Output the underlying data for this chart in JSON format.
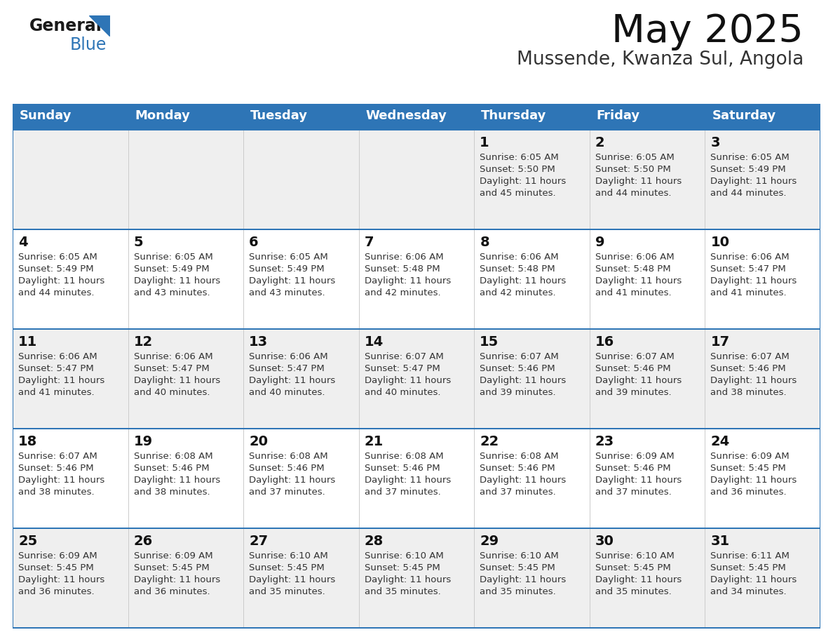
{
  "title": "May 2025",
  "subtitle": "Mussende, Kwanza Sul, Angola",
  "header_bg_color": "#2E75B6",
  "header_text_color": "#FFFFFF",
  "cell_bg_odd": "#EFEFEF",
  "cell_bg_even": "#FFFFFF",
  "text_color": "#222222",
  "border_color": "#2E75B6",
  "days_of_week": [
    "Sunday",
    "Monday",
    "Tuesday",
    "Wednesday",
    "Thursday",
    "Friday",
    "Saturday"
  ],
  "calendar_data": [
    [
      null,
      null,
      null,
      null,
      {
        "day": 1,
        "sunrise": "6:05 AM",
        "sunset": "5:50 PM",
        "daylight": "11 hours and 45 minutes."
      },
      {
        "day": 2,
        "sunrise": "6:05 AM",
        "sunset": "5:50 PM",
        "daylight": "11 hours and 44 minutes."
      },
      {
        "day": 3,
        "sunrise": "6:05 AM",
        "sunset": "5:49 PM",
        "daylight": "11 hours and 44 minutes."
      }
    ],
    [
      {
        "day": 4,
        "sunrise": "6:05 AM",
        "sunset": "5:49 PM",
        "daylight": "11 hours and 44 minutes."
      },
      {
        "day": 5,
        "sunrise": "6:05 AM",
        "sunset": "5:49 PM",
        "daylight": "11 hours and 43 minutes."
      },
      {
        "day": 6,
        "sunrise": "6:05 AM",
        "sunset": "5:49 PM",
        "daylight": "11 hours and 43 minutes."
      },
      {
        "day": 7,
        "sunrise": "6:06 AM",
        "sunset": "5:48 PM",
        "daylight": "11 hours and 42 minutes."
      },
      {
        "day": 8,
        "sunrise": "6:06 AM",
        "sunset": "5:48 PM",
        "daylight": "11 hours and 42 minutes."
      },
      {
        "day": 9,
        "sunrise": "6:06 AM",
        "sunset": "5:48 PM",
        "daylight": "11 hours and 41 minutes."
      },
      {
        "day": 10,
        "sunrise": "6:06 AM",
        "sunset": "5:47 PM",
        "daylight": "11 hours and 41 minutes."
      }
    ],
    [
      {
        "day": 11,
        "sunrise": "6:06 AM",
        "sunset": "5:47 PM",
        "daylight": "11 hours and 41 minutes."
      },
      {
        "day": 12,
        "sunrise": "6:06 AM",
        "sunset": "5:47 PM",
        "daylight": "11 hours and 40 minutes."
      },
      {
        "day": 13,
        "sunrise": "6:06 AM",
        "sunset": "5:47 PM",
        "daylight": "11 hours and 40 minutes."
      },
      {
        "day": 14,
        "sunrise": "6:07 AM",
        "sunset": "5:47 PM",
        "daylight": "11 hours and 40 minutes."
      },
      {
        "day": 15,
        "sunrise": "6:07 AM",
        "sunset": "5:46 PM",
        "daylight": "11 hours and 39 minutes."
      },
      {
        "day": 16,
        "sunrise": "6:07 AM",
        "sunset": "5:46 PM",
        "daylight": "11 hours and 39 minutes."
      },
      {
        "day": 17,
        "sunrise": "6:07 AM",
        "sunset": "5:46 PM",
        "daylight": "11 hours and 38 minutes."
      }
    ],
    [
      {
        "day": 18,
        "sunrise": "6:07 AM",
        "sunset": "5:46 PM",
        "daylight": "11 hours and 38 minutes."
      },
      {
        "day": 19,
        "sunrise": "6:08 AM",
        "sunset": "5:46 PM",
        "daylight": "11 hours and 38 minutes."
      },
      {
        "day": 20,
        "sunrise": "6:08 AM",
        "sunset": "5:46 PM",
        "daylight": "11 hours and 37 minutes."
      },
      {
        "day": 21,
        "sunrise": "6:08 AM",
        "sunset": "5:46 PM",
        "daylight": "11 hours and 37 minutes."
      },
      {
        "day": 22,
        "sunrise": "6:08 AM",
        "sunset": "5:46 PM",
        "daylight": "11 hours and 37 minutes."
      },
      {
        "day": 23,
        "sunrise": "6:09 AM",
        "sunset": "5:46 PM",
        "daylight": "11 hours and 37 minutes."
      },
      {
        "day": 24,
        "sunrise": "6:09 AM",
        "sunset": "5:45 PM",
        "daylight": "11 hours and 36 minutes."
      }
    ],
    [
      {
        "day": 25,
        "sunrise": "6:09 AM",
        "sunset": "5:45 PM",
        "daylight": "11 hours and 36 minutes."
      },
      {
        "day": 26,
        "sunrise": "6:09 AM",
        "sunset": "5:45 PM",
        "daylight": "11 hours and 36 minutes."
      },
      {
        "day": 27,
        "sunrise": "6:10 AM",
        "sunset": "5:45 PM",
        "daylight": "11 hours and 35 minutes."
      },
      {
        "day": 28,
        "sunrise": "6:10 AM",
        "sunset": "5:45 PM",
        "daylight": "11 hours and 35 minutes."
      },
      {
        "day": 29,
        "sunrise": "6:10 AM",
        "sunset": "5:45 PM",
        "daylight": "11 hours and 35 minutes."
      },
      {
        "day": 30,
        "sunrise": "6:10 AM",
        "sunset": "5:45 PM",
        "daylight": "11 hours and 35 minutes."
      },
      {
        "day": 31,
        "sunrise": "6:11 AM",
        "sunset": "5:45 PM",
        "daylight": "11 hours and 34 minutes."
      }
    ]
  ],
  "logo_general_color": "#1a1a1a",
  "logo_blue_color": "#2E75B6"
}
